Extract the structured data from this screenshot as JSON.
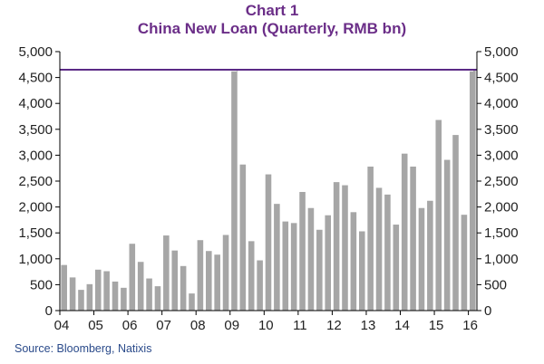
{
  "chart_data": {
    "type": "bar",
    "title": "Chart 1",
    "subtitle": "China New Loan (Quarterly, RMB bn)",
    "source": "Source: Bloomberg, Natixis",
    "ylim": [
      0,
      5000
    ],
    "yticks": [
      "5,000",
      "4,500",
      "4,000",
      "3,500",
      "3,000",
      "2,500",
      "2,000",
      "1,500",
      "1,000",
      "500",
      "0"
    ],
    "ytick_values": [
      5000,
      4500,
      4000,
      3500,
      3000,
      2500,
      2000,
      1500,
      1000,
      500,
      0
    ],
    "xticks": [
      "04",
      "05",
      "06",
      "07",
      "08",
      "09",
      "10",
      "11",
      "12",
      "13",
      "14",
      "15",
      "16"
    ],
    "bar_color": "#a6a6a6",
    "reference_line": {
      "value": 4650,
      "color": "#5b2a86"
    },
    "categories": [
      "2004Q1",
      "2004Q2",
      "2004Q3",
      "2004Q4",
      "2005Q1",
      "2005Q2",
      "2005Q3",
      "2005Q4",
      "2006Q1",
      "2006Q2",
      "2006Q3",
      "2006Q4",
      "2007Q1",
      "2007Q2",
      "2007Q3",
      "2007Q4",
      "2008Q1",
      "2008Q2",
      "2008Q3",
      "2008Q4",
      "2009Q1",
      "2009Q2",
      "2009Q3",
      "2009Q4",
      "2010Q1",
      "2010Q2",
      "2010Q3",
      "2010Q4",
      "2011Q1",
      "2011Q2",
      "2011Q3",
      "2011Q4",
      "2012Q1",
      "2012Q2",
      "2012Q3",
      "2012Q4",
      "2013Q1",
      "2013Q2",
      "2013Q3",
      "2013Q4",
      "2014Q1",
      "2014Q2",
      "2014Q3",
      "2014Q4",
      "2015Q1",
      "2015Q2",
      "2015Q3",
      "2015Q4",
      "2016Q1"
    ],
    "values": [
      880,
      640,
      400,
      510,
      790,
      760,
      560,
      440,
      1290,
      940,
      620,
      470,
      1450,
      1160,
      860,
      330,
      1360,
      1150,
      1080,
      1460,
      4650,
      2820,
      1340,
      970,
      2630,
      2060,
      1720,
      1690,
      2290,
      1980,
      1560,
      1840,
      2480,
      2420,
      1900,
      1530,
      2780,
      2370,
      2240,
      1660,
      3030,
      2780,
      1980,
      2120,
      3680,
      2910,
      3390,
      1850,
      4640
    ]
  }
}
